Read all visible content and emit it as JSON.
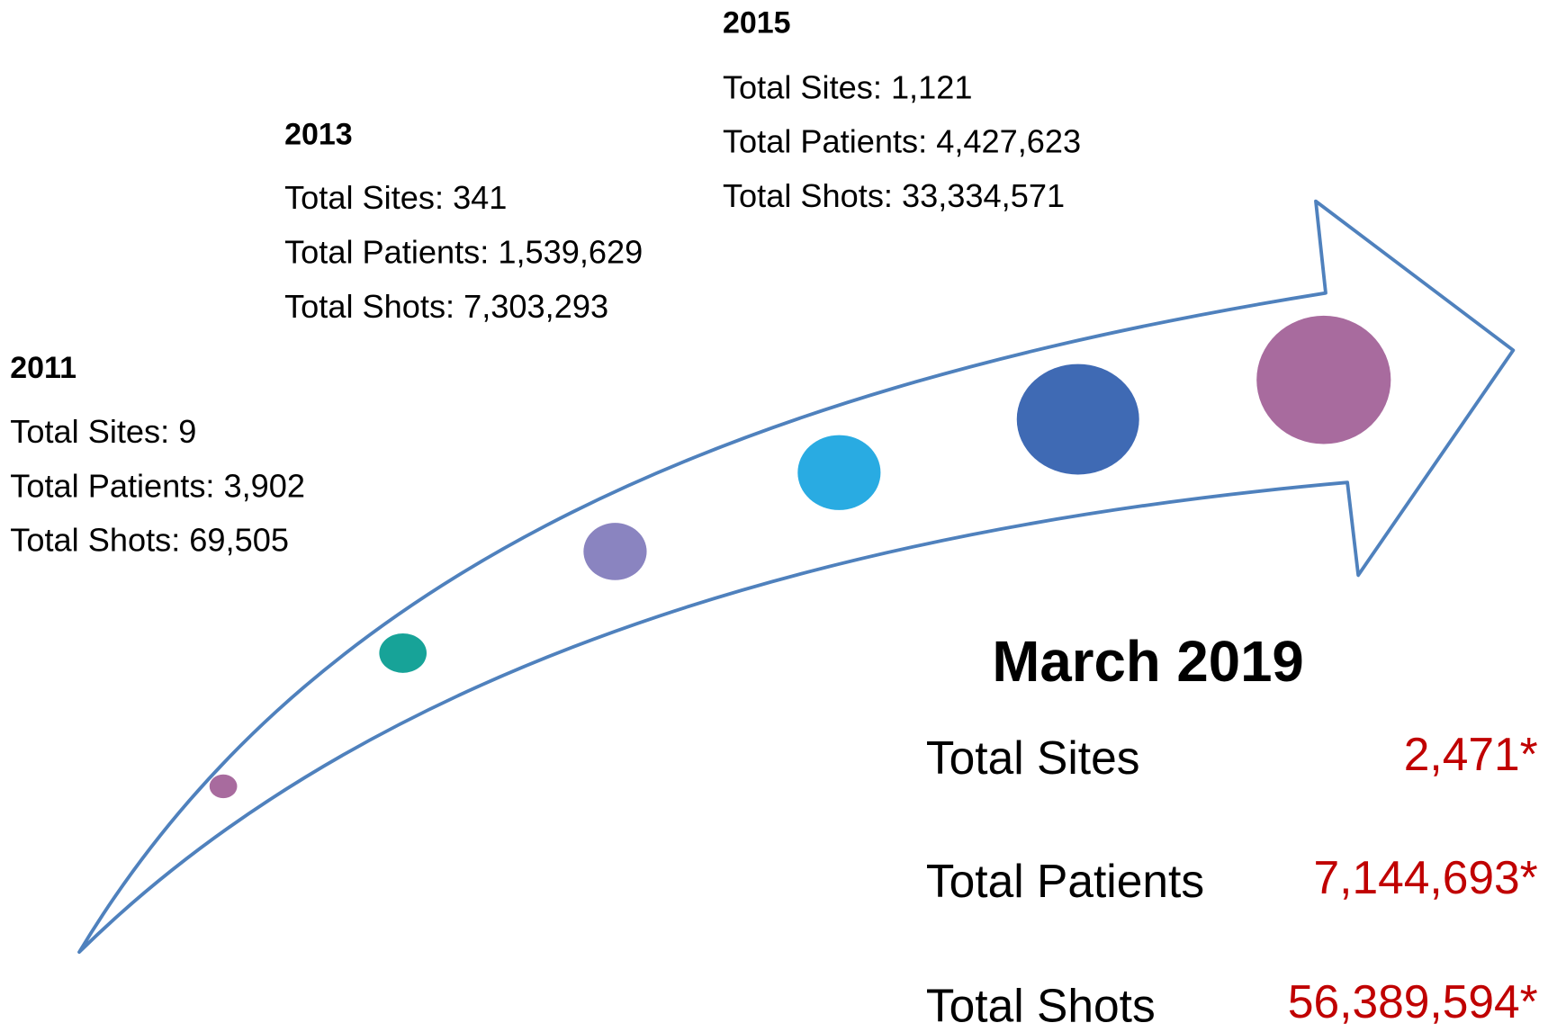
{
  "milestones": [
    {
      "year": "2011",
      "lines": [
        "Total Sites: 9",
        "Total Patients: 3,902",
        "Total Shots: 69,505"
      ]
    },
    {
      "year": "2013",
      "lines": [
        "Total Sites: 341",
        "Total Patients: 1,539,629",
        "Total Shots: 7,303,293"
      ]
    },
    {
      "year": "2015",
      "lines": [
        "Total Sites: 1,121",
        "Total Patients: 4,427,623",
        "Total Shots: 33,334,571"
      ]
    }
  ],
  "current": {
    "title": "March 2019",
    "rows": [
      {
        "label": "Total Sites",
        "value": "2,471*"
      },
      {
        "label": "Total Patients",
        "value": "7,144,693*"
      },
      {
        "label": "Total Shots",
        "value": "56,389,594*"
      }
    ]
  }
}
